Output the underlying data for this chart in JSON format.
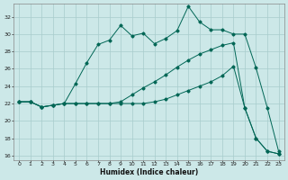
{
  "xlabel": "Humidex (Indice chaleur)",
  "bg_color": "#cce8e8",
  "grid_color": "#a8cccc",
  "line_color": "#006655",
  "xlim": [
    -0.5,
    23.5
  ],
  "ylim": [
    15.5,
    33.5
  ],
  "yticks": [
    16,
    18,
    20,
    22,
    24,
    26,
    28,
    30,
    32
  ],
  "xticks": [
    0,
    1,
    2,
    3,
    4,
    5,
    6,
    7,
    8,
    9,
    10,
    11,
    12,
    13,
    14,
    15,
    16,
    17,
    18,
    19,
    20,
    21,
    22,
    23
  ],
  "line1_x": [
    0,
    1,
    2,
    3,
    4,
    5,
    6,
    7,
    8,
    9,
    10,
    11,
    12,
    13,
    14,
    15,
    16,
    17,
    18,
    19,
    20,
    21,
    22,
    23
  ],
  "line1_y": [
    22.2,
    22.2,
    21.6,
    21.8,
    22.0,
    24.3,
    26.7,
    28.8,
    29.3,
    31.0,
    29.8,
    30.1,
    28.9,
    29.5,
    30.4,
    33.2,
    31.4,
    30.5,
    30.5,
    30.0,
    30.0,
    26.1,
    21.5,
    16.5
  ],
  "line2_x": [
    0,
    1,
    2,
    3,
    4,
    5,
    6,
    7,
    8,
    9,
    10,
    11,
    12,
    13,
    14,
    15,
    16,
    17,
    18,
    19,
    20,
    21,
    22,
    23
  ],
  "line2_y": [
    22.2,
    22.2,
    21.6,
    21.8,
    22.0,
    22.0,
    22.0,
    22.0,
    22.0,
    22.2,
    23.0,
    23.8,
    24.5,
    25.3,
    26.2,
    27.0,
    27.7,
    28.2,
    28.7,
    29.0,
    21.5,
    18.0,
    16.5,
    16.2
  ],
  "line3_x": [
    0,
    1,
    2,
    3,
    4,
    5,
    6,
    7,
    8,
    9,
    10,
    11,
    12,
    13,
    14,
    15,
    16,
    17,
    18,
    19,
    20,
    21,
    22,
    23
  ],
  "line3_y": [
    22.2,
    22.2,
    21.6,
    21.8,
    22.0,
    22.0,
    22.0,
    22.0,
    22.0,
    22.0,
    22.0,
    22.0,
    22.2,
    22.5,
    23.0,
    23.5,
    24.0,
    24.5,
    25.2,
    26.3,
    21.5,
    18.0,
    16.5,
    16.2
  ]
}
